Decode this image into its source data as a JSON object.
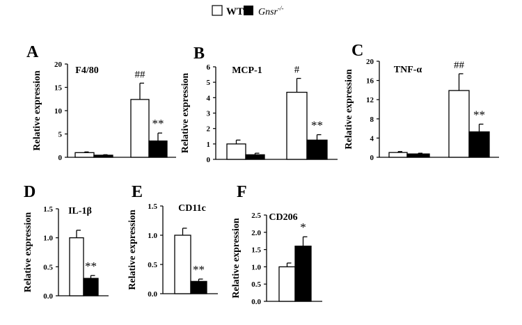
{
  "legend": {
    "items": [
      {
        "label": "WT",
        "color": "#ffffff",
        "italic": false
      },
      {
        "label": "Gnsr",
        "sup": "-/-",
        "color": "#000000",
        "italic": true
      }
    ]
  },
  "chart_data": [
    {
      "type": "bar",
      "panel": "A",
      "title": "F4/80",
      "ylabel": "Relative expression",
      "ylim": [
        0,
        20
      ],
      "yticks": [
        "0",
        "5",
        "10",
        "15",
        "20"
      ],
      "groups": 2,
      "series": [
        {
          "name": "WT",
          "values": [
            1.0,
            12.4
          ],
          "errors": [
            0.15,
            3.5
          ],
          "annotations": [
            "",
            "##"
          ]
        },
        {
          "name": "Gnsr-/-",
          "values": [
            0.45,
            3.5
          ],
          "errors": [
            0.1,
            1.7
          ],
          "annotations": [
            "",
            "**"
          ]
        }
      ]
    },
    {
      "type": "bar",
      "panel": "B",
      "title": "MCP-1",
      "ylabel": "Relative expression",
      "ylim": [
        0,
        6
      ],
      "yticks": [
        "0",
        "1",
        "2",
        "3",
        "4",
        "5",
        "6"
      ],
      "groups": 2,
      "series": [
        {
          "name": "WT",
          "values": [
            1.0,
            4.35
          ],
          "errors": [
            0.25,
            0.9
          ],
          "annotations": [
            "",
            "#"
          ]
        },
        {
          "name": "Gnsr-/-",
          "values": [
            0.3,
            1.25
          ],
          "errors": [
            0.1,
            0.35
          ],
          "annotations": [
            "",
            "**"
          ]
        }
      ]
    },
    {
      "type": "bar",
      "panel": "C",
      "title": "TNF-α",
      "ylabel": "Relative expression",
      "ylim": [
        0,
        20
      ],
      "yticks": [
        "0",
        "4",
        "8",
        "12",
        "16",
        "20"
      ],
      "groups": 2,
      "series": [
        {
          "name": "WT",
          "values": [
            1.0,
            13.9
          ],
          "errors": [
            0.2,
            3.5
          ],
          "annotations": [
            "",
            "##"
          ]
        },
        {
          "name": "Gnsr-/-",
          "values": [
            0.7,
            5.3
          ],
          "errors": [
            0.15,
            1.6
          ],
          "annotations": [
            "",
            "**"
          ]
        }
      ]
    },
    {
      "type": "bar",
      "panel": "D",
      "title": "IL-1β",
      "ylabel": "Relative expression",
      "ylim": [
        0,
        1.5
      ],
      "yticks": [
        "0.0",
        "0.5",
        "1.0",
        "1.5"
      ],
      "groups": 1,
      "series": [
        {
          "name": "WT",
          "values": [
            1.0
          ],
          "errors": [
            0.13
          ],
          "annotations": [
            ""
          ]
        },
        {
          "name": "Gnsr-/-",
          "values": [
            0.3
          ],
          "errors": [
            0.05
          ],
          "annotations": [
            "**"
          ]
        }
      ]
    },
    {
      "type": "bar",
      "panel": "E",
      "title": "CD11c",
      "ylabel": "Relative expression",
      "ylim": [
        0,
        1.5
      ],
      "yticks": [
        "0.0",
        "0.5",
        "1.0",
        "1.5"
      ],
      "groups": 1,
      "series": [
        {
          "name": "WT",
          "values": [
            1.0
          ],
          "errors": [
            0.12
          ],
          "annotations": [
            ""
          ]
        },
        {
          "name": "Gnsr-/-",
          "values": [
            0.21
          ],
          "errors": [
            0.04
          ],
          "annotations": [
            "**"
          ]
        }
      ]
    },
    {
      "type": "bar",
      "panel": "F",
      "title": "CD206",
      "ylabel": "Relative expression",
      "ylim": [
        0,
        2.5
      ],
      "yticks": [
        "0.0",
        "0.5",
        "1.0",
        "1.5",
        "2.0",
        "2.5"
      ],
      "groups": 1,
      "series": [
        {
          "name": "WT",
          "values": [
            1.0
          ],
          "errors": [
            0.11
          ],
          "annotations": [
            ""
          ]
        },
        {
          "name": "Gnsr-/-",
          "values": [
            1.6
          ],
          "errors": [
            0.27
          ],
          "annotations": [
            "*"
          ]
        }
      ]
    }
  ]
}
